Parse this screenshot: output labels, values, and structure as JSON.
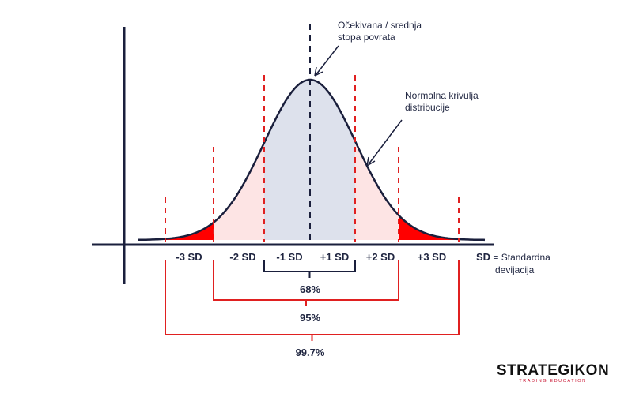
{
  "annotations": {
    "mean": [
      "Očekivana / srednja",
      "stopa povrata"
    ],
    "curve": [
      "Normalna krivulja",
      "distribucije"
    ],
    "sd_key": "SD",
    "sd_legend": [
      "= Standardna",
      "devijacija"
    ]
  },
  "sd_labels": [
    "-3 SD",
    "-2 SD",
    "-1 SD",
    "+1 SD",
    "+2 SD",
    "+3 SD"
  ],
  "ranges": [
    "68%",
    "95%",
    "99.7%"
  ],
  "logo": {
    "main": "STRATEGIKON",
    "sub": "TRADING EDUCATION"
  },
  "colors": {
    "curve": "#1a1f3c",
    "accent": "#e02020",
    "inner_fill": "#dde1ec",
    "middle_fill": "#fde4e4",
    "tail_fill": "#ff0000"
  }
}
